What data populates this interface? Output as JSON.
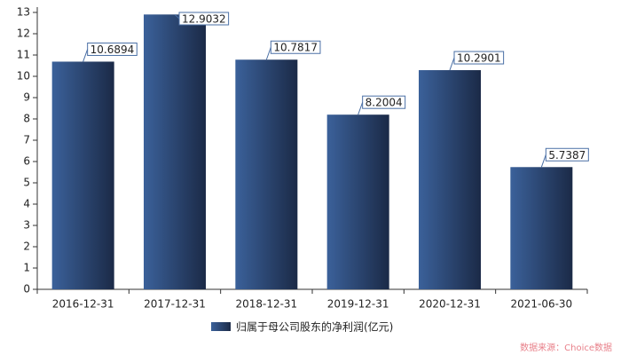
{
  "chart_data": {
    "type": "bar",
    "categories": [
      "2016-12-31",
      "2017-12-31",
      "2018-12-31",
      "2019-12-31",
      "2020-12-31",
      "2021-06-30"
    ],
    "series": [
      {
        "name": "归属于母公司股东的净利润(亿元)",
        "color": "#2b4a78",
        "values": [
          10.6894,
          12.9032,
          10.7817,
          8.2004,
          10.2901,
          5.7387
        ]
      }
    ],
    "ylim": [
      0,
      13
    ],
    "yticks": [
      0,
      1,
      2,
      3,
      4,
      5,
      6,
      7,
      8,
      9,
      10,
      11,
      12,
      13
    ],
    "grid": false,
    "legend": "bottom",
    "source": "数据来源：Choice数据"
  }
}
